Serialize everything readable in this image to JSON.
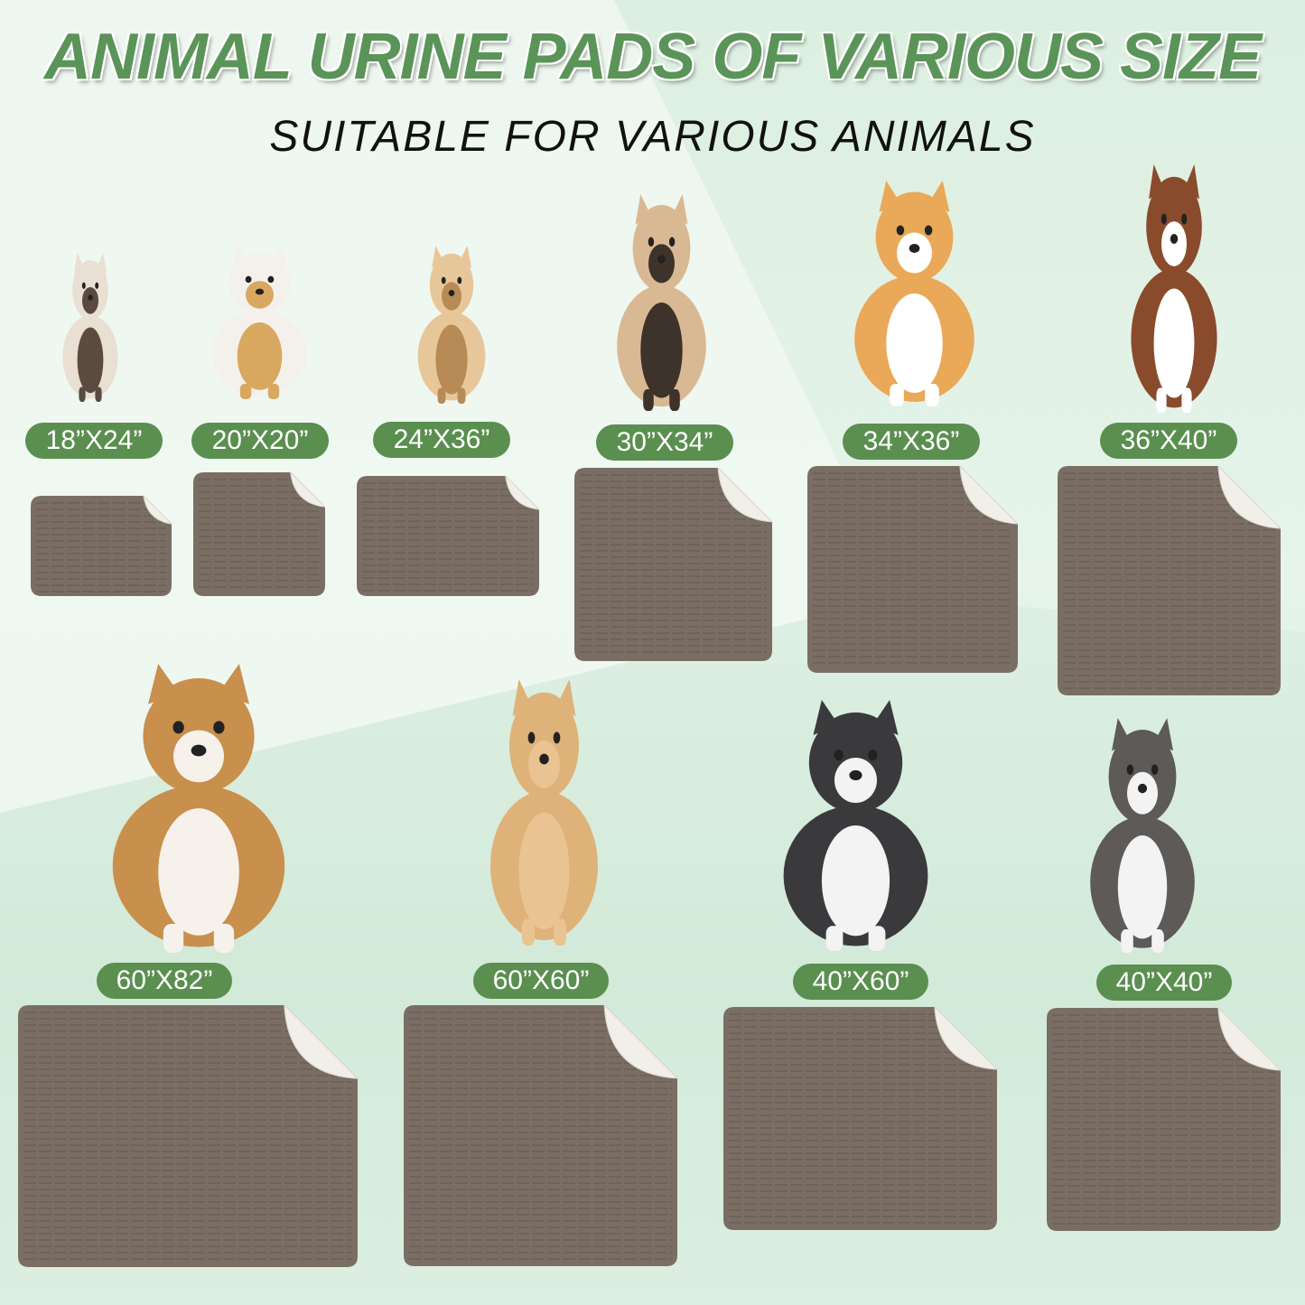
{
  "header": {
    "title": "ANIMAL URINE PADS OF VARIOUS SIZE",
    "subtitle": "SUITABLE FOR VARIOUS ANIMALS"
  },
  "colors": {
    "title": "#5a9458",
    "label_bg": "#5a8f4f",
    "pad": "#7a6e64",
    "pad_back": "#f1efe8",
    "background": "#dcefe0"
  },
  "sizes": [
    {
      "label": "18”X24”",
      "animal": "siamese-cat"
    },
    {
      "label": "20”X20”",
      "animal": "cat-and-puppy"
    },
    {
      "label": "24”X36”",
      "animal": "small-dog"
    },
    {
      "label": "30”X34”",
      "animal": "pug"
    },
    {
      "label": "34”X36”",
      "animal": "corgi"
    },
    {
      "label": "36”X40”",
      "animal": "australian-shepherd"
    },
    {
      "label": "60”X82”",
      "animal": "saint-bernard"
    },
    {
      "label": "60”X60”",
      "animal": "golden-retriever"
    },
    {
      "label": "40”X60”",
      "animal": "husky-pair"
    },
    {
      "label": "40”X40”",
      "animal": "husky"
    }
  ]
}
